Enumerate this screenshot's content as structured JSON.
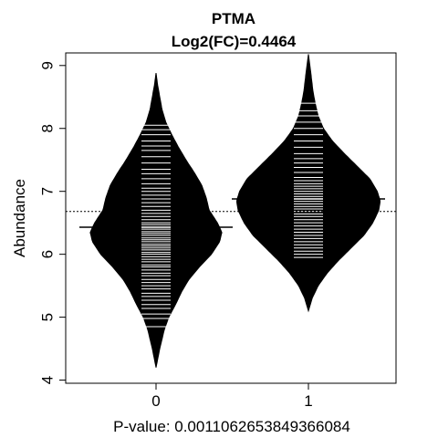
{
  "chart_data": {
    "type": "beanplot",
    "title": "PTMA",
    "subtitle": "Log2(FC)=0.4464",
    "ylabel": "Abundance",
    "xlabel": "P-value: 0.00110626538493660​84",
    "categories": [
      "0",
      "1"
    ],
    "yticks": [
      4,
      5,
      6,
      7,
      8,
      9
    ],
    "ylim": [
      3.95,
      9.2
    ],
    "overall_mean": 6.68,
    "group_means": [
      6.43,
      6.88
    ],
    "colors": {
      "bean": "#000000",
      "line": "#ffffff",
      "axis": "#000000"
    },
    "beans": [
      {
        "group": "0",
        "y_min": 4.2,
        "y_max": 8.88,
        "density": [
          [
            4.2,
            0.0
          ],
          [
            4.5,
            0.05
          ],
          [
            4.8,
            0.11
          ],
          [
            5.0,
            0.17
          ],
          [
            5.2,
            0.26
          ],
          [
            5.4,
            0.34
          ],
          [
            5.6,
            0.44
          ],
          [
            5.8,
            0.58
          ],
          [
            6.0,
            0.74
          ],
          [
            6.2,
            0.85
          ],
          [
            6.35,
            0.88
          ],
          [
            6.5,
            0.82
          ],
          [
            6.7,
            0.71
          ],
          [
            6.9,
            0.67
          ],
          [
            7.1,
            0.61
          ],
          [
            7.3,
            0.51
          ],
          [
            7.5,
            0.4
          ],
          [
            7.7,
            0.3
          ],
          [
            7.9,
            0.21
          ],
          [
            8.1,
            0.13
          ],
          [
            8.3,
            0.08
          ],
          [
            8.5,
            0.05
          ],
          [
            8.7,
            0.02
          ],
          [
            8.88,
            0.0
          ]
        ],
        "observations": [
          4.85,
          4.98,
          5.05,
          5.14,
          5.2,
          5.27,
          5.33,
          5.38,
          5.45,
          5.5,
          5.55,
          5.6,
          5.66,
          5.7,
          5.75,
          5.8,
          5.83,
          5.88,
          5.92,
          5.96,
          6.0,
          6.03,
          6.07,
          6.1,
          6.13,
          6.16,
          6.2,
          6.23,
          6.26,
          6.3,
          6.33,
          6.36,
          6.4,
          6.43,
          6.47,
          6.5,
          6.55,
          6.6,
          6.65,
          6.7,
          6.76,
          6.82,
          6.88,
          6.94,
          7.0,
          7.05,
          7.12,
          7.2,
          7.28,
          7.35,
          7.45,
          7.55,
          7.65,
          7.72,
          7.8,
          7.9,
          7.98,
          8.05
        ]
      },
      {
        "group": "1",
        "y_min": 5.1,
        "y_max": 9.18,
        "density": [
          [
            5.1,
            0.0
          ],
          [
            5.3,
            0.05
          ],
          [
            5.5,
            0.13
          ],
          [
            5.7,
            0.25
          ],
          [
            5.9,
            0.4
          ],
          [
            6.1,
            0.57
          ],
          [
            6.3,
            0.74
          ],
          [
            6.5,
            0.86
          ],
          [
            6.7,
            0.94
          ],
          [
            6.85,
            0.96
          ],
          [
            7.0,
            0.92
          ],
          [
            7.2,
            0.82
          ],
          [
            7.4,
            0.65
          ],
          [
            7.6,
            0.48
          ],
          [
            7.8,
            0.32
          ],
          [
            8.0,
            0.2
          ],
          [
            8.2,
            0.13
          ],
          [
            8.4,
            0.09
          ],
          [
            8.6,
            0.06
          ],
          [
            8.8,
            0.04
          ],
          [
            9.0,
            0.02
          ],
          [
            9.18,
            0.0
          ]
        ],
        "observations": [
          5.95,
          6.0,
          6.05,
          6.1,
          6.15,
          6.2,
          6.25,
          6.3,
          6.35,
          6.4,
          6.45,
          6.5,
          6.55,
          6.6,
          6.64,
          6.68,
          6.72,
          6.76,
          6.8,
          6.84,
          6.88,
          6.92,
          6.96,
          7.0,
          7.04,
          7.08,
          7.12,
          7.17,
          7.22,
          7.3,
          7.38,
          7.45,
          7.52,
          7.6,
          7.7,
          7.8,
          7.9,
          8.0,
          8.1,
          8.2,
          8.28,
          8.4
        ]
      }
    ]
  }
}
